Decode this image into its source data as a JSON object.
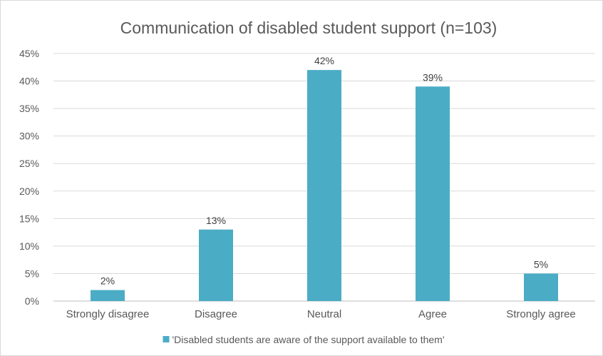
{
  "chart_data": {
    "type": "bar",
    "title": "Communication of disabled student support (n=103)",
    "xlabel": "",
    "ylabel": "",
    "categories": [
      "Strongly disagree",
      "Disagree",
      "Neutral",
      "Agree",
      "Strongly agree"
    ],
    "series": [
      {
        "name": "'Disabled students are aware of the support available to them'",
        "values": [
          2,
          13,
          42,
          39,
          5
        ],
        "data_labels": [
          "2%",
          "13%",
          "42%",
          "39%",
          "5%"
        ],
        "color": "#4bacc6"
      }
    ],
    "ylim": [
      0,
      45
    ],
    "yticks": [
      "0%",
      "5%",
      "10%",
      "15%",
      "20%",
      "25%",
      "30%",
      "35%",
      "40%",
      "45%"
    ],
    "grid": true,
    "legend_position": "bottom"
  }
}
